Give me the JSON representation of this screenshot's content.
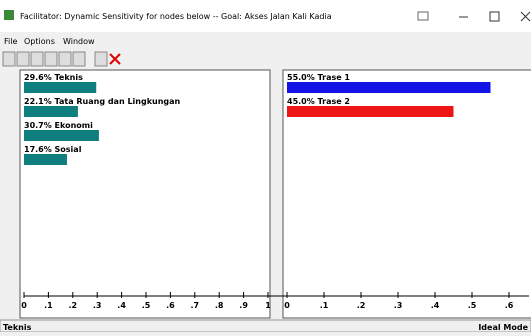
{
  "window": {
    "title": "Facilitator: Dynamic Sensitivity for nodes below -- Goal: Akses Jalan Kali Kadia",
    "menu": [
      "File",
      "Options",
      "Window"
    ]
  },
  "left_panel": {
    "color": "#0e7f7c",
    "items": [
      {
        "label": "29.6% Teknis",
        "value": 0.296
      },
      {
        "label": "22.1% Tata Ruang dan Lingkungan",
        "value": 0.221
      },
      {
        "label": "30.7% Ekonomi",
        "value": 0.307
      },
      {
        "label": "17.6% Sosial",
        "value": 0.176
      }
    ],
    "xlim": [
      0,
      1
    ],
    "xticks": [
      0,
      {
        "value": 0.1,
        "label": ".1"
      },
      {
        "value": 0.2,
        "label": ".2"
      },
      {
        "value": 0.3,
        "label": ".3"
      },
      {
        "value": 0.4,
        "label": ".4"
      },
      {
        "value": 0.5,
        "label": ".5"
      },
      {
        "value": 0.6,
        "label": ".6"
      },
      {
        "value": 0.7,
        "label": ".7"
      },
      {
        "value": 0.8,
        "label": ".8"
      },
      {
        "value": 0.9,
        "label": ".9"
      },
      1
    ]
  },
  "right_panel": {
    "items": [
      {
        "label": "55.0% Trase 1",
        "value": 0.55,
        "color": "#1414e6"
      },
      {
        "label": "45.0% Trase 2",
        "value": 0.45,
        "color": "#ee1515"
      }
    ],
    "xlim": [
      0,
      0.6
    ],
    "xticks": [
      0,
      {
        "value": 0.1,
        "label": ".1"
      },
      {
        "value": 0.2,
        "label": ".2"
      },
      {
        "value": 0.3,
        "label": ".3"
      },
      {
        "value": 0.4,
        "label": ".4"
      },
      {
        "value": 0.5,
        "label": ".5"
      },
      {
        "value": 0.6,
        "label": ".6"
      }
    ]
  },
  "status": {
    "left": "Teknis",
    "right": "Ideal Mode"
  }
}
